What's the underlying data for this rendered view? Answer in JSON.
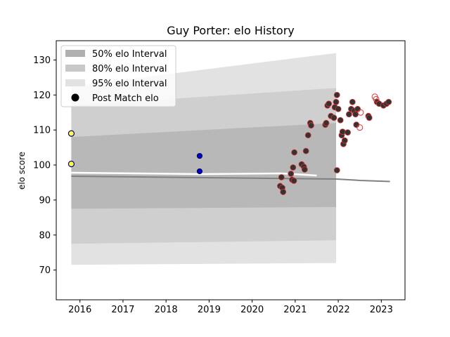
{
  "chart_data": {
    "type": "scatter",
    "title": "Guy Porter: elo History",
    "xlabel": "",
    "ylabel": "elo score",
    "xlim": [
      2015.45,
      2023.55
    ],
    "ylim": [
      61.5,
      135.5
    ],
    "x_ticks": [
      2016,
      2017,
      2018,
      2019,
      2020,
      2021,
      2022,
      2023
    ],
    "x_tick_labels": [
      "2016",
      "2017",
      "2018",
      "2019",
      "2020",
      "2021",
      "2022",
      "2023"
    ],
    "y_ticks": [
      70,
      80,
      90,
      100,
      110,
      120,
      130
    ],
    "y_tick_labels": [
      "70",
      "80",
      "90",
      "100",
      "110",
      "120",
      "130"
    ],
    "grid": false,
    "legend": {
      "placement": "top-left",
      "entries": [
        {
          "label": "50% elo Interval",
          "color": "#b0b0b0"
        },
        {
          "label": "80% elo Interval",
          "color": "#c8c8c8"
        },
        {
          "label": "95% elo Interval",
          "color": "#e2e2e2"
        },
        {
          "label": "Post Match elo",
          "color": "#000000"
        }
      ]
    },
    "bands": {
      "b95": {
        "x": [
          2015.8,
          2021.95
        ],
        "low": [
          71.5,
          72
        ],
        "high": [
          122.5,
          132
        ]
      },
      "b80": {
        "x": [
          2015.8,
          2021.95
        ],
        "low": [
          77.5,
          78.5
        ],
        "high": [
          117,
          122
        ]
      },
      "b50": {
        "x": [
          2015.8,
          2021.95
        ],
        "low": [
          87.5,
          88
        ],
        "high": [
          108,
          112
        ]
      }
    },
    "mean_line": {
      "x": [
        2015.8,
        2021.95,
        2022.5,
        2023.2
      ],
      "y": [
        96.8,
        96.0,
        95.6,
        95.3
      ],
      "color": "#808080"
    },
    "median_line": {
      "x": [
        2015.8,
        2018.8,
        2020.7,
        2021.5
      ],
      "y": [
        97.8,
        97.4,
        97.6,
        97.0
      ],
      "color": "#ffffff"
    },
    "series": [
      {
        "name": "",
        "style": "early",
        "points": [
          [
            2015.8,
            109
          ],
          [
            2015.8,
            100.3
          ],
          [
            2018.78,
            102.6
          ],
          [
            2018.78,
            98.2
          ]
        ]
      },
      {
        "name": "",
        "style": "filled",
        "points": [
          [
            2020.65,
            94
          ],
          [
            2020.68,
            96.5
          ],
          [
            2020.7,
            93.5
          ],
          [
            2020.72,
            92.3
          ],
          [
            2020.9,
            97.5
          ],
          [
            2020.93,
            95.8
          ],
          [
            2020.95,
            99.3
          ],
          [
            2020.97,
            95.5
          ],
          [
            2020.98,
            103.6
          ],
          [
            2021.15,
            100.2
          ],
          [
            2021.2,
            99.5
          ],
          [
            2021.22,
            98.7
          ],
          [
            2021.25,
            104
          ],
          [
            2021.3,
            108.5
          ],
          [
            2021.35,
            112
          ],
          [
            2021.37,
            111.3
          ],
          [
            2021.7,
            111.5
          ],
          [
            2021.72,
            112
          ],
          [
            2021.75,
            117
          ],
          [
            2021.78,
            117.5
          ],
          [
            2021.83,
            114
          ],
          [
            2021.9,
            113.5
          ],
          [
            2021.92,
            116.5
          ],
          [
            2021.95,
            118
          ],
          [
            2021.97,
            120
          ],
          [
            2021.97,
            98.5
          ],
          [
            2022.0,
            116
          ],
          [
            2022.05,
            112.8
          ],
          [
            2022.08,
            108.5
          ],
          [
            2022.1,
            109.5
          ],
          [
            2022.12,
            106
          ],
          [
            2022.15,
            107
          ],
          [
            2022.22,
            109.3
          ],
          [
            2022.25,
            114.5
          ],
          [
            2022.3,
            116
          ],
          [
            2022.33,
            118
          ],
          [
            2022.37,
            115.5
          ],
          [
            2022.4,
            114.5
          ],
          [
            2022.42,
            111.5
          ],
          [
            2022.45,
            116
          ],
          [
            2022.7,
            114
          ],
          [
            2022.72,
            113.5
          ],
          [
            2022.9,
            118
          ],
          [
            2022.95,
            117.5
          ],
          [
            2023.05,
            117
          ],
          [
            2023.12,
            117.5
          ],
          [
            2023.17,
            118
          ]
        ]
      },
      {
        "name": "",
        "style": "open",
        "points": [
          [
            2022.52,
            115
          ],
          [
            2022.5,
            110.7
          ],
          [
            2022.85,
            119.5
          ],
          [
            2022.88,
            118.8
          ]
        ]
      }
    ]
  }
}
